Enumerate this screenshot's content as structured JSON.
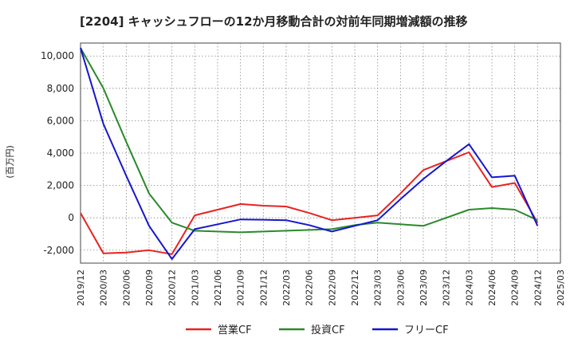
{
  "chart_data": {
    "type": "line",
    "title": "[2204]  キャッシュフローの12か月移動合計の対前年同期増減額の推移",
    "ylabel": "(百万円)",
    "xlabel": "",
    "ylim": [
      -2800,
      10800
    ],
    "yticks": [
      -2000,
      0,
      2000,
      4000,
      6000,
      8000,
      10000
    ],
    "ytick_labels": [
      "-2,000",
      "0",
      "2,000",
      "4,000",
      "6,000",
      "8,000",
      "10,000"
    ],
    "x_ticks": [
      "2019/12",
      "2020/03",
      "2020/06",
      "2020/09",
      "2020/12",
      "2021/03",
      "2021/06",
      "2021/09",
      "2021/12",
      "2022/03",
      "2022/06",
      "2022/09",
      "2022/12",
      "2023/03",
      "2023/06",
      "2023/09",
      "2023/12",
      "2024/03",
      "2024/06",
      "2024/09",
      "2024/12",
      "2025/03"
    ],
    "grid": true,
    "legend_position": "bottom",
    "series": [
      {
        "name": "営業CF",
        "color": "#e8231f",
        "values": [
          300,
          -2200,
          -2150,
          -2000,
          -2250,
          150,
          500,
          850,
          750,
          700,
          300,
          -150,
          0,
          150,
          1500,
          2950,
          3500,
          4050,
          1900,
          2150,
          -300
        ]
      },
      {
        "name": "投資CF",
        "color": "#2a8a2a",
        "values": [
          10500,
          8000,
          4700,
          1500,
          -300,
          -800,
          -850,
          -900,
          -850,
          -800,
          -750,
          -700,
          -450,
          -300,
          -400,
          -500,
          0,
          500,
          600,
          500,
          -150
        ]
      },
      {
        "name": "フリーCF",
        "color": "#1515d0",
        "values": [
          10500,
          5800,
          2600,
          -500,
          -2550,
          -700,
          -400,
          -100,
          -120,
          -150,
          -450,
          -850,
          -500,
          -150,
          1150,
          2400,
          3500,
          4550,
          2500,
          2600,
          -500
        ]
      }
    ]
  }
}
